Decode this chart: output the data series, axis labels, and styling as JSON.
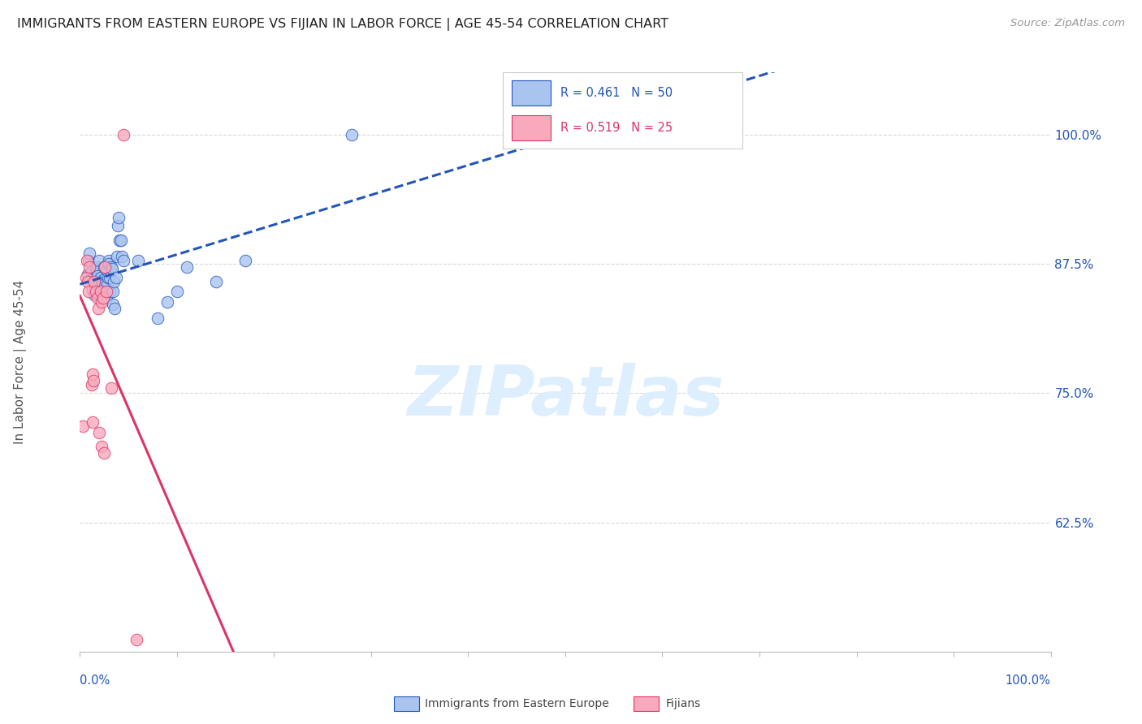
{
  "title": "IMMIGRANTS FROM EASTERN EUROPE VS FIJIAN IN LABOR FORCE | AGE 45-54 CORRELATION CHART",
  "source": "Source: ZipAtlas.com",
  "ylabel": "In Labor Force | Age 45-54",
  "R_blue": 0.461,
  "N_blue": 50,
  "R_pink": 0.519,
  "N_pink": 25,
  "blue_scatter": [
    [
      0.008,
      0.865
    ],
    [
      0.009,
      0.878
    ],
    [
      0.01,
      0.885
    ],
    [
      0.012,
      0.868
    ],
    [
      0.013,
      0.85
    ],
    [
      0.015,
      0.862
    ],
    [
      0.015,
      0.845
    ],
    [
      0.016,
      0.87
    ],
    [
      0.017,
      0.858
    ],
    [
      0.018,
      0.872
    ],
    [
      0.018,
      0.863
    ],
    [
      0.02,
      0.878
    ],
    [
      0.02,
      0.845
    ],
    [
      0.021,
      0.862
    ],
    [
      0.022,
      0.855
    ],
    [
      0.023,
      0.858
    ],
    [
      0.024,
      0.845
    ],
    [
      0.025,
      0.872
    ],
    [
      0.025,
      0.86
    ],
    [
      0.026,
      0.855
    ],
    [
      0.027,
      0.842
    ],
    [
      0.028,
      0.868
    ],
    [
      0.028,
      0.855
    ],
    [
      0.029,
      0.862
    ],
    [
      0.03,
      0.878
    ],
    [
      0.03,
      0.875
    ],
    [
      0.031,
      0.862
    ],
    [
      0.031,
      0.848
    ],
    [
      0.032,
      0.872
    ],
    [
      0.033,
      0.87
    ],
    [
      0.034,
      0.848
    ],
    [
      0.034,
      0.836
    ],
    [
      0.035,
      0.858
    ],
    [
      0.036,
      0.832
    ],
    [
      0.037,
      0.862
    ],
    [
      0.038,
      0.882
    ],
    [
      0.039,
      0.912
    ],
    [
      0.04,
      0.92
    ],
    [
      0.041,
      0.898
    ],
    [
      0.042,
      0.898
    ],
    [
      0.043,
      0.882
    ],
    [
      0.045,
      0.878
    ],
    [
      0.06,
      0.878
    ],
    [
      0.08,
      0.822
    ],
    [
      0.09,
      0.838
    ],
    [
      0.1,
      0.848
    ],
    [
      0.11,
      0.872
    ],
    [
      0.14,
      0.858
    ],
    [
      0.17,
      0.878
    ],
    [
      0.28,
      1.0
    ]
  ],
  "pink_scatter": [
    [
      0.003,
      0.718
    ],
    [
      0.006,
      0.862
    ],
    [
      0.007,
      0.878
    ],
    [
      0.008,
      0.858
    ],
    [
      0.009,
      0.848
    ],
    [
      0.01,
      0.872
    ],
    [
      0.012,
      0.758
    ],
    [
      0.013,
      0.768
    ],
    [
      0.013,
      0.722
    ],
    [
      0.014,
      0.762
    ],
    [
      0.015,
      0.858
    ],
    [
      0.016,
      0.848
    ],
    [
      0.018,
      0.842
    ],
    [
      0.019,
      0.832
    ],
    [
      0.02,
      0.712
    ],
    [
      0.021,
      0.848
    ],
    [
      0.022,
      0.838
    ],
    [
      0.022,
      0.698
    ],
    [
      0.024,
      0.842
    ],
    [
      0.025,
      0.692
    ],
    [
      0.026,
      0.872
    ],
    [
      0.027,
      0.848
    ],
    [
      0.032,
      0.755
    ],
    [
      0.045,
      1.0
    ],
    [
      0.058,
      0.512
    ]
  ],
  "blue_line_color": "#2255bb",
  "pink_line_color": "#dd3366",
  "blue_scatter_face": "#aac4f0",
  "pink_scatter_face": "#f8aabc",
  "background_color": "#ffffff",
  "grid_color": "#d8d8d8",
  "legend_blue": "Immigrants from Eastern Europe",
  "legend_pink": "Fijians",
  "watermark_text": "ZIPatlas",
  "watermark_color": "#ddeeff",
  "x_min": 0.0,
  "x_max": 1.0,
  "y_min": 0.5,
  "y_max": 1.06,
  "y_ticks": [
    0.625,
    0.75,
    0.875,
    1.0
  ],
  "y_tick_labels": [
    "62.5%",
    "75.0%",
    "87.5%",
    "100.0%"
  ]
}
